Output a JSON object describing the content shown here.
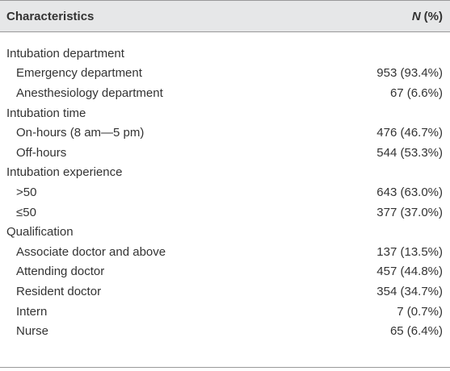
{
  "table": {
    "header": {
      "characteristics": "Characteristics",
      "n": "N",
      "percent": "(%)"
    },
    "groups": [
      {
        "label": "Intubation department",
        "rows": [
          [
            "Emergency department",
            "953 (93.4%)"
          ],
          [
            "Anesthesiology department",
            "67 (6.6%)"
          ]
        ]
      },
      {
        "label": "Intubation time",
        "rows": [
          [
            "On-hours (8 am—5 pm)",
            "476 (46.7%)"
          ],
          [
            "Off-hours",
            "544 (53.3%)"
          ]
        ]
      },
      {
        "label": "Intubation experience",
        "rows": [
          [
            ">50",
            "643 (63.0%)"
          ],
          [
            "≤50",
            "377 (37.0%)"
          ]
        ]
      },
      {
        "label": "Qualification",
        "rows": [
          [
            "Associate doctor and above",
            "137 (13.5%)"
          ],
          [
            "Attending doctor",
            "457 (44.8%)"
          ],
          [
            "Resident doctor",
            "354 (34.7%)"
          ],
          [
            "Intern",
            "7 (0.7%)"
          ],
          [
            "Nurse",
            "65 (6.4%)"
          ]
        ]
      }
    ]
  }
}
